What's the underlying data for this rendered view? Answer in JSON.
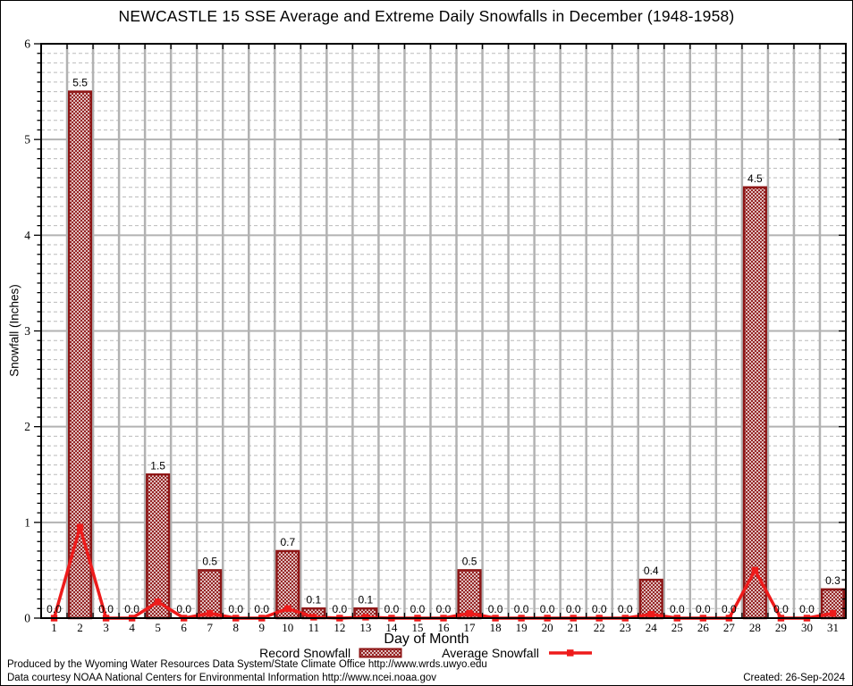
{
  "title": "NEWCASTLE 15 SSE Average and Extreme Daily Snowfalls in December (1948-1958)",
  "chart_data": {
    "type": "bar",
    "title": "NEWCASTLE 15 SSE Average and Extreme Daily Snowfalls in December (1948-1958)",
    "xlabel": "Day of Month",
    "ylabel": "Snowfall (Inches)",
    "ylim": [
      0,
      6
    ],
    "xlim": [
      0.5,
      31.5
    ],
    "y_major_step": 1,
    "y_minor_step": 0.1,
    "grid": "major-solid, minor-dashed, vertical lines at day boundaries",
    "legend_position": "bottom",
    "categories": [
      1,
      2,
      3,
      4,
      5,
      6,
      7,
      8,
      9,
      10,
      11,
      12,
      13,
      14,
      15,
      16,
      17,
      18,
      19,
      20,
      21,
      22,
      23,
      24,
      25,
      26,
      27,
      28,
      29,
      30,
      31
    ],
    "series": [
      {
        "name": "Record Snowfall",
        "type": "bar",
        "fill": "crosshatch",
        "values": [
          0.0,
          5.5,
          0.0,
          0.0,
          1.5,
          0.0,
          0.5,
          0.0,
          0.0,
          0.7,
          0.1,
          0.0,
          0.1,
          0.0,
          0.0,
          0.0,
          0.5,
          0.0,
          0.0,
          0.0,
          0.0,
          0.0,
          0.0,
          0.4,
          0.0,
          0.0,
          0.0,
          4.5,
          0.0,
          0.0,
          0.3
        ],
        "data_labels": [
          "0.0",
          "5.5",
          "0.0",
          "0.0",
          "1.5",
          "0.0",
          "0.5",
          "0.0",
          "0.0",
          "0.7",
          "0.1",
          "0.0",
          "0.1",
          "0.0",
          "0.0",
          "0.0",
          "0.5",
          "0.0",
          "0.0",
          "0.0",
          "0.0",
          "0.0",
          "0.0",
          "0.4",
          "0.0",
          "0.0",
          "0.0",
          "4.5",
          "0.0",
          "0.0",
          "0.3"
        ]
      },
      {
        "name": "Average Snowfall",
        "type": "line",
        "marker": "square",
        "values": [
          0,
          0.95,
          0,
          0,
          0.17,
          0,
          0.05,
          0,
          0,
          0.1,
          0.01,
          0,
          0.01,
          0,
          0,
          0,
          0.05,
          0,
          0,
          0,
          0,
          0,
          0,
          0.04,
          0,
          0,
          0,
          0.5,
          0,
          0,
          0.05
        ]
      }
    ]
  },
  "colors": {
    "bar_stroke": "#8e1616",
    "bar_hatch": "#8e1616",
    "bar_bg": "#ffffff",
    "line": "#ee1b1b",
    "grid_major": "#b2b2b2",
    "grid_minor": "#bbbbbb",
    "frame": "#000000",
    "text": "#000000"
  },
  "footer": {
    "line1": "Produced by the Wyoming Water Resources Data System/State Climate Office http://www.wrds.uwyo.edu",
    "line2": "Data courtesy NOAA National Centers for Environmental Information http://www.ncei.noaa.gov",
    "created": "Created: 26-Sep-2024"
  }
}
